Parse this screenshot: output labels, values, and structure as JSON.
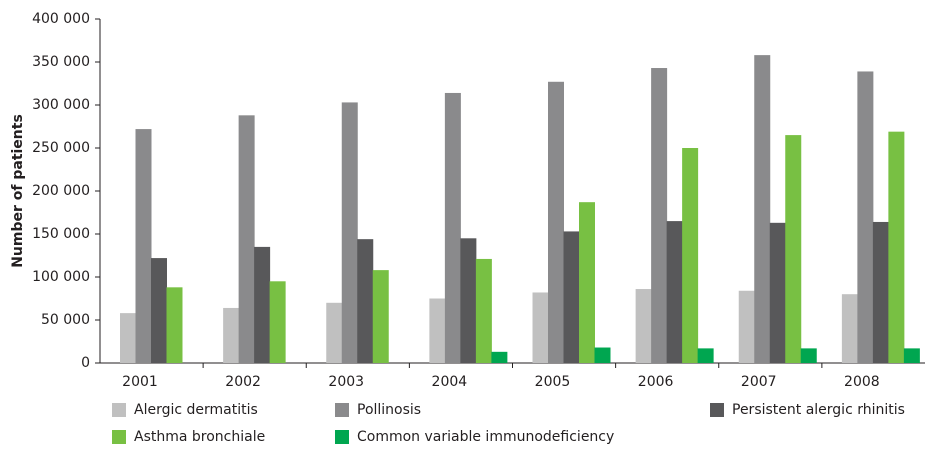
{
  "chart_data": {
    "type": "bar",
    "y_label": "Number of patients",
    "categories": [
      "2001",
      "2002",
      "2003",
      "2004",
      "2005",
      "2006",
      "2007",
      "2008"
    ],
    "series": [
      {
        "name": "Alergic dermatitis",
        "color": "#c0c0c0",
        "values": [
          58000,
          64000,
          70000,
          75000,
          82000,
          86000,
          84000,
          80000
        ]
      },
      {
        "name": "Pollinosis",
        "color": "#8a8a8c",
        "values": [
          272000,
          288000,
          303000,
          314000,
          327000,
          343000,
          358000,
          339000
        ]
      },
      {
        "name": "Persistent alergic rhinitis",
        "color": "#58585a",
        "values": [
          122000,
          135000,
          144000,
          145000,
          153000,
          165000,
          163000,
          164000
        ]
      },
      {
        "name": "Asthma bronchiale",
        "color": "#78c043",
        "values": [
          88000,
          95000,
          108000,
          121000,
          187000,
          250000,
          265000,
          269000
        ]
      },
      {
        "name": "Common variable immunodeficiency",
        "color": "#00a650",
        "values": [
          null,
          null,
          null,
          13000,
          18000,
          17000,
          17000,
          17000
        ]
      }
    ],
    "ylim": [
      0,
      400000
    ],
    "yticks": [
      0,
      {
        "value": 50000,
        "label": "50 000"
      },
      {
        "value": 100000,
        "label": "100 000"
      },
      {
        "value": 150000,
        "label": "150 000"
      },
      {
        "value": 200000,
        "label": "200 000"
      },
      {
        "value": 250000,
        "label": "250 000"
      },
      {
        "value": 300000,
        "label": "300 000"
      },
      {
        "value": 350000,
        "label": "350 000"
      },
      {
        "value": 400000,
        "label": "400 000"
      }
    ],
    "grid": false
  }
}
